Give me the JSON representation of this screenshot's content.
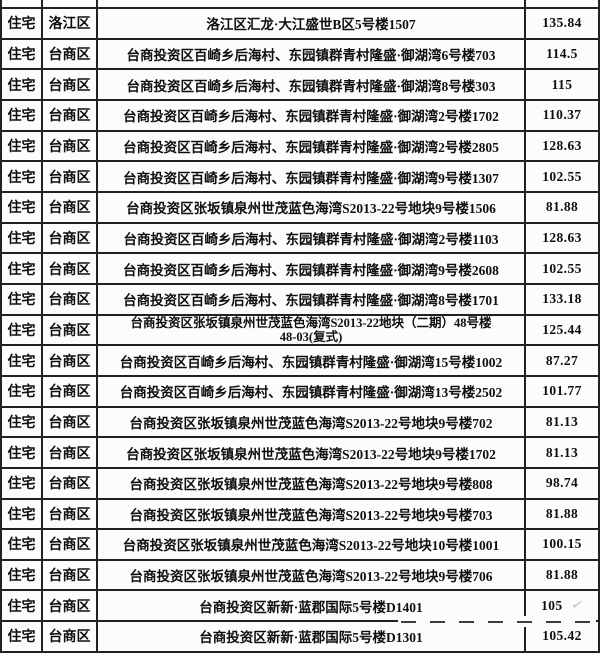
{
  "colors": {
    "border": "#212121",
    "text": "#0e0e0e",
    "background": "#fcfcfb",
    "watermark": "#bdbdbd"
  },
  "table": {
    "rows": [
      {
        "type": "住宅",
        "district": "洛江区",
        "address": "洛江区汇龙·大江盛世B区5号楼1507",
        "value": "135.84"
      },
      {
        "type": "住宅",
        "district": "台商区",
        "address": "台商投资区百崎乡后海村、东园镇群青村隆盛·御湖湾6号楼703",
        "value": "114.5"
      },
      {
        "type": "住宅",
        "district": "台商区",
        "address": "台商投资区百崎乡后海村、东园镇群青村隆盛·御湖湾8号楼303",
        "value": "115"
      },
      {
        "type": "住宅",
        "district": "台商区",
        "address": "台商投资区百崎乡后海村、东园镇群青村隆盛·御湖湾2号楼1702",
        "value": "110.37"
      },
      {
        "type": "住宅",
        "district": "台商区",
        "address": "台商投资区百崎乡后海村、东园镇群青村隆盛·御湖湾2号楼2805",
        "value": "128.63"
      },
      {
        "type": "住宅",
        "district": "台商区",
        "address": "台商投资区百崎乡后海村、东园镇群青村隆盛·御湖湾9号楼1307",
        "value": "102.55"
      },
      {
        "type": "住宅",
        "district": "台商区",
        "address": "台商投资区张坂镇泉州世茂蓝色海湾S2013-22号地块9号楼1506",
        "value": "81.88"
      },
      {
        "type": "住宅",
        "district": "台商区",
        "address": "台商投资区百崎乡后海村、东园镇群青村隆盛·御湖湾2号楼1103",
        "value": "128.63"
      },
      {
        "type": "住宅",
        "district": "台商区",
        "address": "台商投资区百崎乡后海村、东园镇群青村隆盛·御湖湾9号楼2608",
        "value": "102.55"
      },
      {
        "type": "住宅",
        "district": "台商区",
        "address": "台商投资区百崎乡后海村、东园镇群青村隆盛·御湖湾8号楼1701",
        "value": "133.18"
      },
      {
        "type": "住宅",
        "district": "台商区",
        "address": "台商投资区张坂镇泉州世茂蓝色海湾S2013-22地块（二期）48号楼",
        "address_line2": "48-03(复式)",
        "value": "125.44"
      },
      {
        "type": "住宅",
        "district": "台商区",
        "address": "台商投资区百崎乡后海村、东园镇群青村隆盛·御湖湾15号楼1002",
        "value": "87.27"
      },
      {
        "type": "住宅",
        "district": "台商区",
        "address": "台商投资区百崎乡后海村、东园镇群青村隆盛·御湖湾13号楼2502",
        "value": "101.77"
      },
      {
        "type": "住宅",
        "district": "台商区",
        "address": "台商投资区张坂镇泉州世茂蓝色海湾S2013-22号地块9号楼702",
        "value": "81.13"
      },
      {
        "type": "住宅",
        "district": "台商区",
        "address": "台商投资区张坂镇泉州世茂蓝色海湾S2013-22号地块9号楼1702",
        "value": "81.13"
      },
      {
        "type": "住宅",
        "district": "台商区",
        "address": "台商投资区张坂镇泉州世茂蓝色海湾S2013-22号地块9号楼808",
        "value": "98.74"
      },
      {
        "type": "住宅",
        "district": "台商区",
        "address": "台商投资区张坂镇泉州世茂蓝色海湾S2013-22号地块9号楼703",
        "value": "81.88"
      },
      {
        "type": "住宅",
        "district": "台商区",
        "address": "台商投资区张坂镇泉州世茂蓝色海湾S2013-22号地块10号楼1001",
        "value": "100.15"
      },
      {
        "type": "住宅",
        "district": "台商区",
        "address": "台商投资区张坂镇泉州世茂蓝色海湾S2013-22号地块9号楼706",
        "value": "81.88"
      },
      {
        "type": "住宅",
        "district": "台商区",
        "address": "台商投资区新新·蓝郡国际5号楼D1401",
        "value": "105",
        "value_obscured_by_watermark": true
      },
      {
        "type": "住宅",
        "district": "台商区",
        "address": "台商投资区新新·蓝郡国际5号楼D1301",
        "value": "105.42"
      }
    ]
  },
  "watermark": {
    "check_glyph": "✓"
  }
}
